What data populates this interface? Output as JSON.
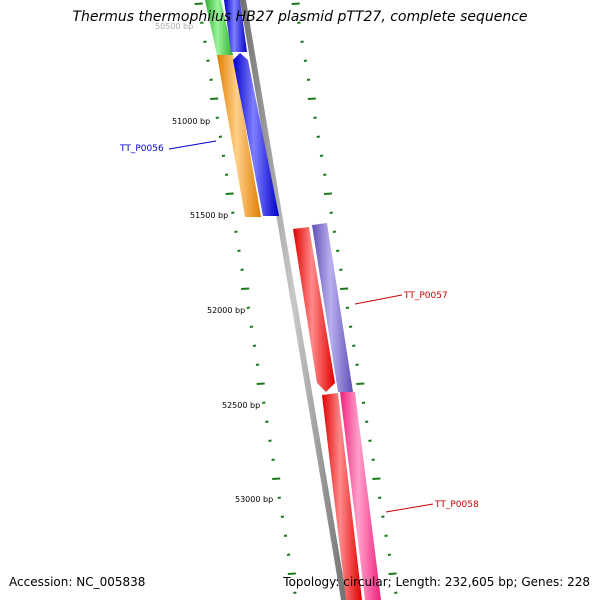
{
  "title": "Thermus thermophilus HB27 plasmid pTT27, complete sequence",
  "footer": {
    "accession": "Accession: NC_005838",
    "summary": "Topology: circular; Length: 232,605 bp; Genes: 228"
  },
  "ruler": {
    "partial_label": "50500 bp",
    "labels": [
      "51000 bp",
      "51500 bp",
      "52000 bp",
      "52500 bp",
      "53000 bp"
    ],
    "tick_color": "#1a7a1a"
  },
  "genes": [
    {
      "label": "TT_P0056",
      "color": "#0000cc"
    },
    {
      "label": "TT_P0057",
      "color": "#cc0000"
    },
    {
      "label": "TT_P0058",
      "color": "#cc0000"
    }
  ],
  "colors": {
    "backbone": "#808080",
    "green": "#33cc33",
    "orange": "#ff9900",
    "blue": "#0000ff",
    "red": "#ff0000",
    "purple": "#7766cc",
    "pink": "#ff3399"
  }
}
